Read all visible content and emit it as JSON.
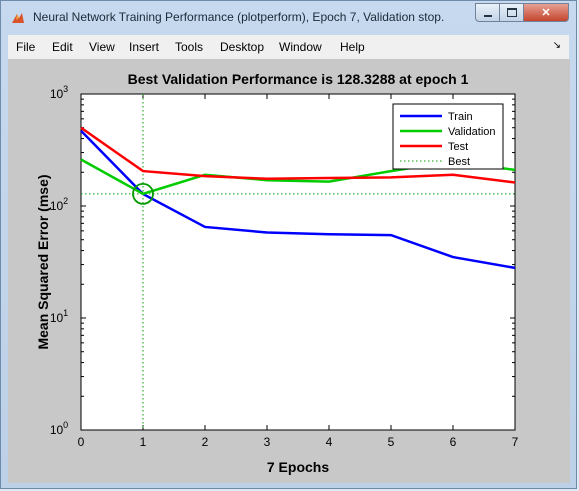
{
  "window": {
    "title": "Neural Network Training Performance (plotperform), Epoch 7, Validation stop.",
    "minimize_icon": "minimize-icon",
    "maximize_icon": "maximize-icon",
    "close_icon": "close-icon"
  },
  "menu": {
    "items": [
      "File",
      "Edit",
      "View",
      "Insert",
      "Tools",
      "Desktop",
      "Window",
      "Help"
    ],
    "dock_icon": "dock-arrow-icon"
  },
  "chart_data": {
    "type": "line",
    "title": "Best Validation Performance is 128.3288 at epoch 1",
    "xlabel": "7 Epochs",
    "ylabel": "Mean Squared Error  (mse)",
    "xlim": [
      0,
      7
    ],
    "ylim": [
      1,
      1000
    ],
    "yscale": "log",
    "xticks": [
      "0",
      "1",
      "2",
      "3",
      "4",
      "5",
      "6",
      "7"
    ],
    "yticks": [
      {
        "base": "10",
        "exp": "0"
      },
      {
        "base": "10",
        "exp": "1"
      },
      {
        "base": "10",
        "exp": "2"
      },
      {
        "base": "10",
        "exp": "3"
      }
    ],
    "legend_position": "top-right",
    "series": [
      {
        "name": "Train",
        "color": "#0000ff",
        "x": [
          0,
          1,
          2,
          3,
          4,
          5,
          6,
          7
        ],
        "values": [
          470,
          128,
          65,
          58,
          56,
          55,
          35,
          28
        ]
      },
      {
        "name": "Validation",
        "color": "#00cc00",
        "x": [
          0,
          1,
          2,
          3,
          4,
          5,
          6,
          7
        ],
        "values": [
          260,
          128.3288,
          190,
          170,
          165,
          205,
          250,
          210
        ]
      },
      {
        "name": "Test",
        "color": "#ff0000",
        "x": [
          0,
          1,
          2,
          3,
          4,
          5,
          6,
          7
        ],
        "values": [
          500,
          205,
          185,
          175,
          178,
          180,
          190,
          162
        ]
      }
    ],
    "best": {
      "name": "Best",
      "color": "#009900",
      "epoch": 1,
      "value": 128.3288
    }
  }
}
